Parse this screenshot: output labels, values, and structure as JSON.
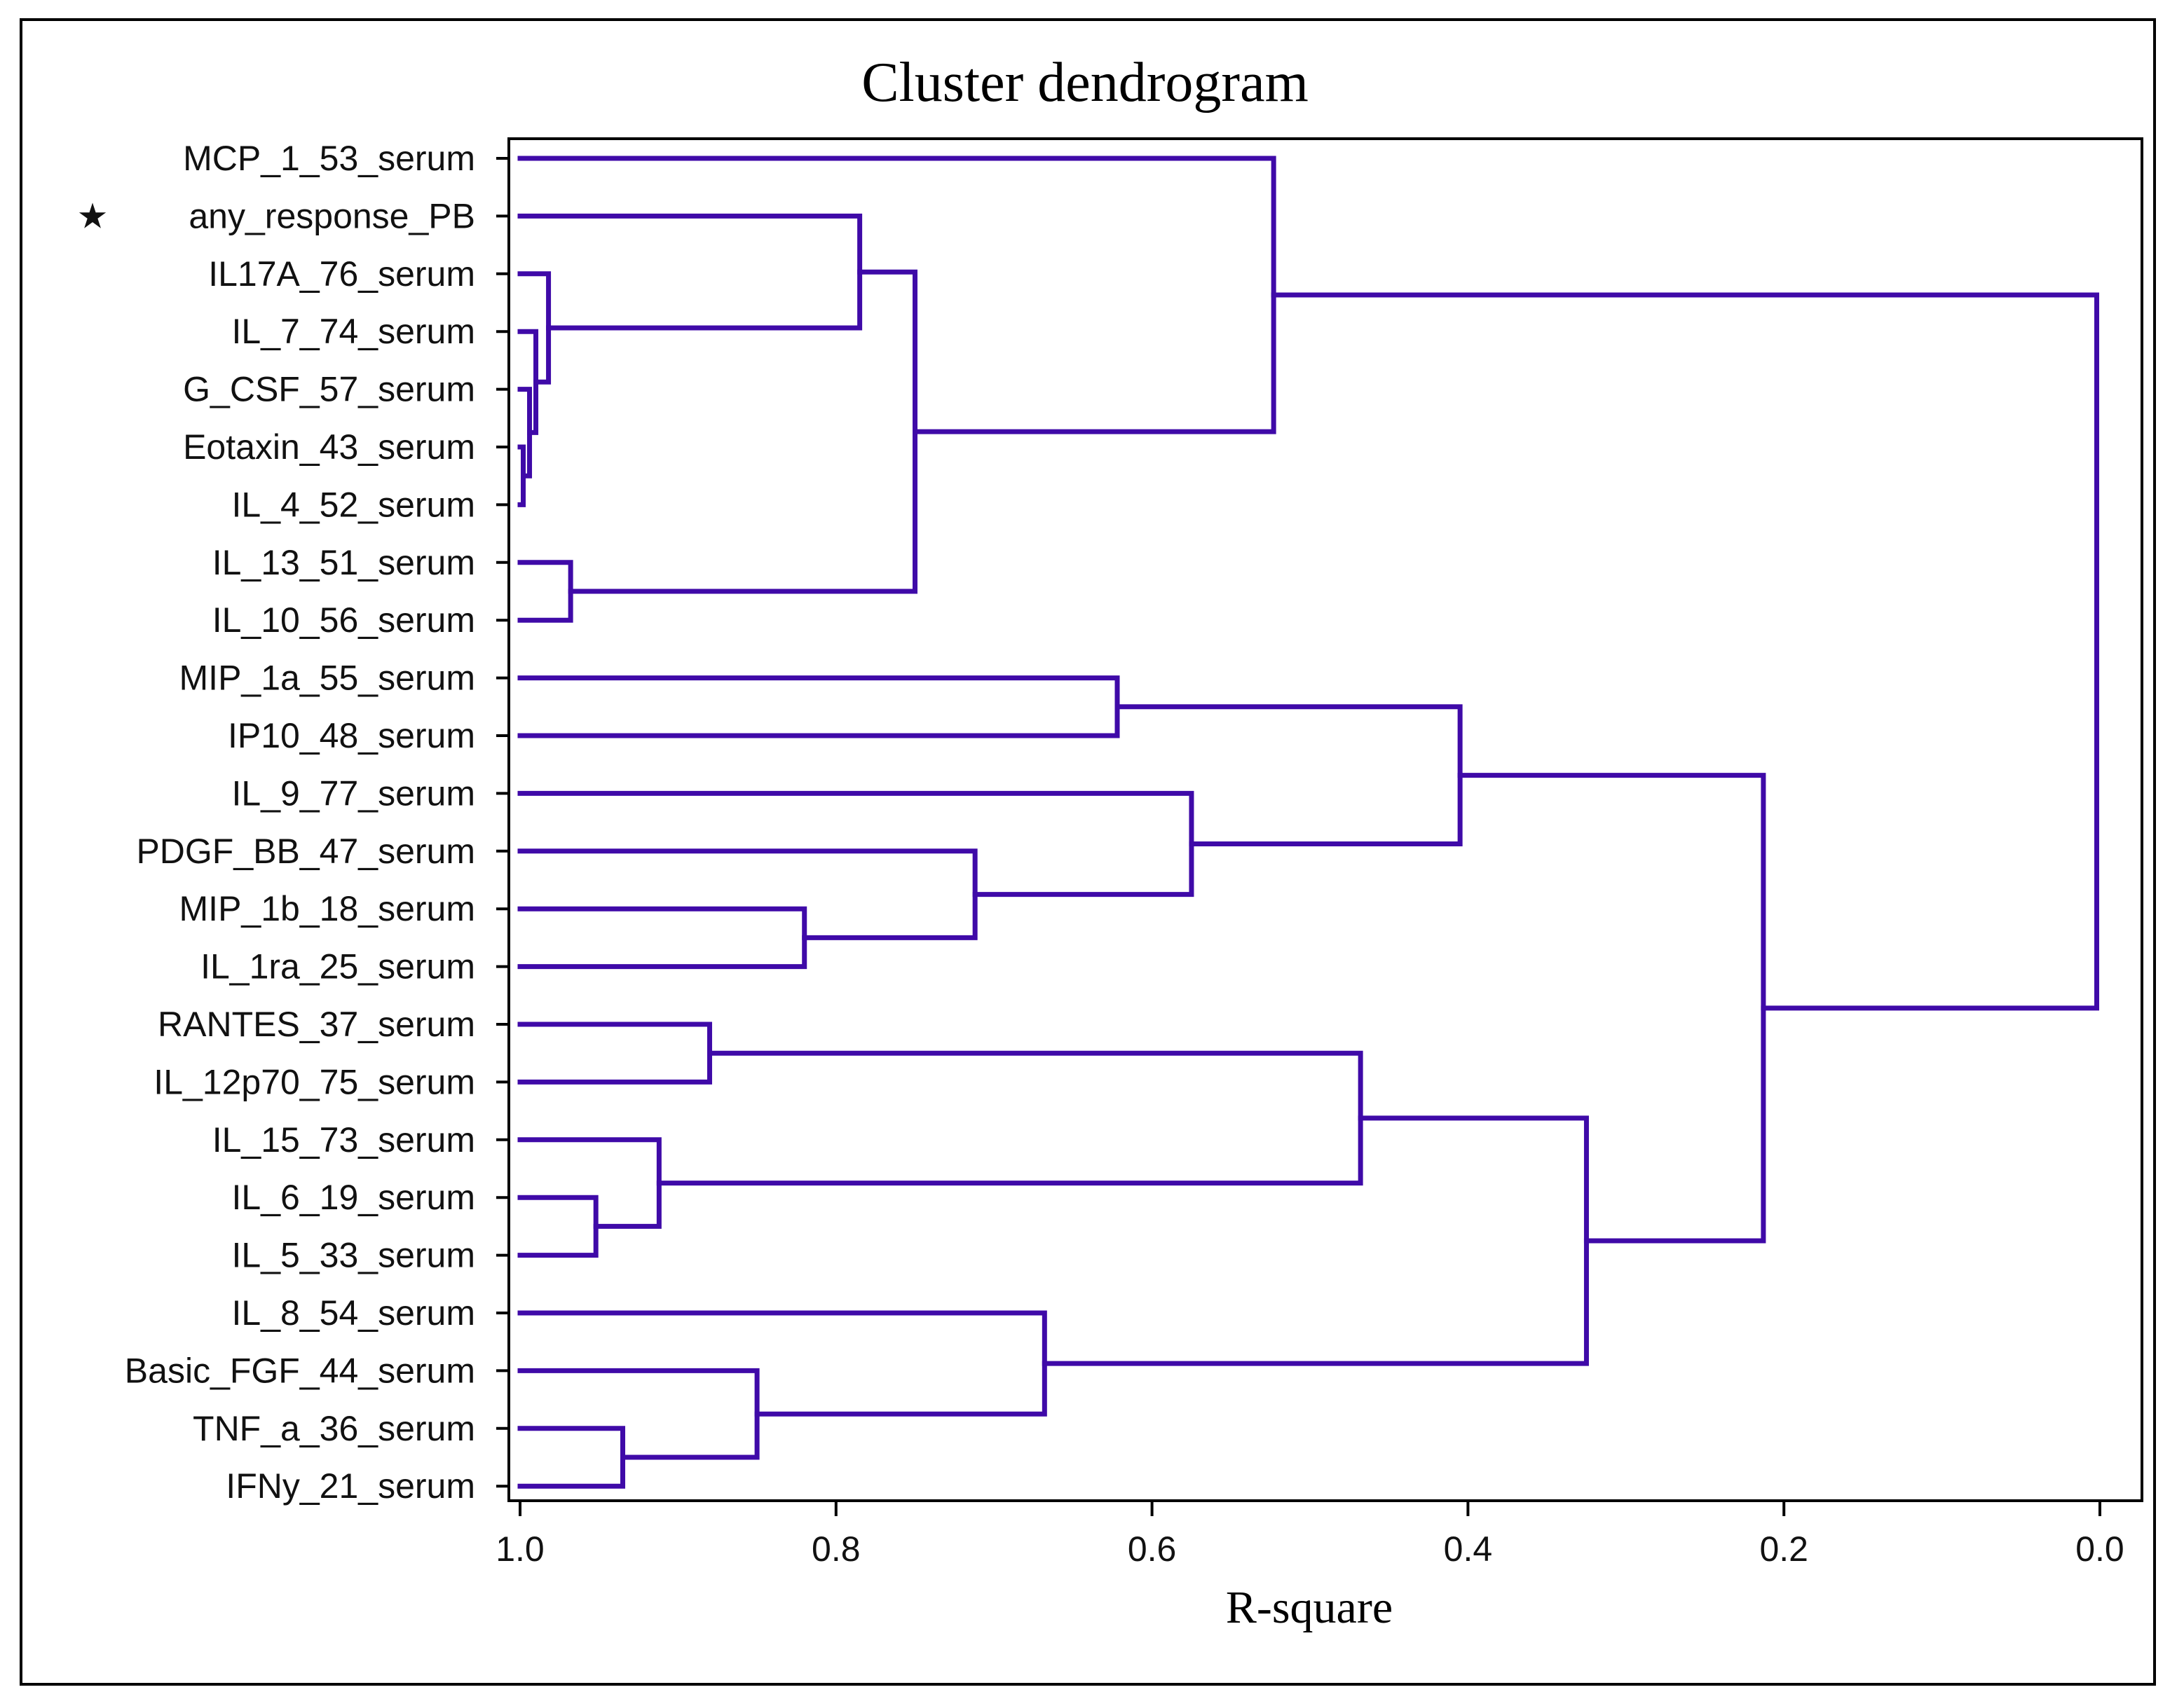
{
  "chart_data": {
    "type": "dendrogram",
    "title": "Cluster dendrogram",
    "xlabel": "R-square",
    "x_range": [
      1.0,
      0.0
    ],
    "x_ticks": [
      "1.0",
      "0.8",
      "0.6",
      "0.4",
      "0.2",
      "0.0"
    ],
    "x_tick_values": [
      1.0,
      0.8,
      0.6,
      0.4,
      0.2,
      0.0
    ],
    "line_color": "#3f0aa8",
    "marked_leaf_symbol": "★",
    "leaves": [
      {
        "label": "MCP_1_53_serum"
      },
      {
        "label": "any_response_PB",
        "marked": true
      },
      {
        "label": "IL17A_76_serum"
      },
      {
        "label": "IL_7_74_serum"
      },
      {
        "label": "G_CSF_57_serum"
      },
      {
        "label": "Eotaxin_43_serum"
      },
      {
        "label": "IL_4_52_serum"
      },
      {
        "label": "IL_13_51_serum"
      },
      {
        "label": "IL_10_56_serum"
      },
      {
        "label": "MIP_1a_55_serum"
      },
      {
        "label": "IP10_48_serum"
      },
      {
        "label": "IL_9_77_serum"
      },
      {
        "label": "PDGF_BB_47_serum"
      },
      {
        "label": "MIP_1b_18_serum"
      },
      {
        "label": "IL_1ra_25_serum"
      },
      {
        "label": "RANTES_37_serum"
      },
      {
        "label": "IL_12p70_75_serum"
      },
      {
        "label": "IL_15_73_serum"
      },
      {
        "label": "IL_6_19_serum"
      },
      {
        "label": "IL_5_33_serum"
      },
      {
        "label": "IL_8_54_serum"
      },
      {
        "label": "Basic_FGF_44_serum"
      },
      {
        "label": "TNF_a_36_serum"
      },
      {
        "label": "IFNy_21_serum"
      }
    ],
    "merges": [
      {
        "id": "m1",
        "children": [
          "L5",
          "L6"
        ],
        "rsq": 0.998
      },
      {
        "id": "m2",
        "children": [
          "L4",
          "m1"
        ],
        "rsq": 0.994
      },
      {
        "id": "m3",
        "children": [
          "L3",
          "m2"
        ],
        "rsq": 0.99
      },
      {
        "id": "m4",
        "children": [
          "L2",
          "m3"
        ],
        "rsq": 0.982
      },
      {
        "id": "m5",
        "children": [
          "L7",
          "L8"
        ],
        "rsq": 0.968
      },
      {
        "id": "m6",
        "children": [
          "L1",
          "m4"
        ],
        "rsq": 0.785
      },
      {
        "id": "m7",
        "children": [
          "m6",
          "m5"
        ],
        "rsq": 0.75
      },
      {
        "id": "m8",
        "children": [
          "L0",
          "m7"
        ],
        "rsq": 0.523
      },
      {
        "id": "m9",
        "children": [
          "L9",
          "L10"
        ],
        "rsq": 0.622
      },
      {
        "id": "m10",
        "children": [
          "L13",
          "L14"
        ],
        "rsq": 0.82
      },
      {
        "id": "m11",
        "children": [
          "L12",
          "m10"
        ],
        "rsq": 0.712
      },
      {
        "id": "m12",
        "children": [
          "L11",
          "m11"
        ],
        "rsq": 0.575
      },
      {
        "id": "m13",
        "children": [
          "m9",
          "m12"
        ],
        "rsq": 0.405
      },
      {
        "id": "m14",
        "children": [
          "L15",
          "L16"
        ],
        "rsq": 0.88
      },
      {
        "id": "m15",
        "children": [
          "L18",
          "L19"
        ],
        "rsq": 0.952
      },
      {
        "id": "m16",
        "children": [
          "L17",
          "m15"
        ],
        "rsq": 0.912
      },
      {
        "id": "m17",
        "children": [
          "m14",
          "m16"
        ],
        "rsq": 0.468
      },
      {
        "id": "m18",
        "children": [
          "L22",
          "L23"
        ],
        "rsq": 0.935
      },
      {
        "id": "m19",
        "children": [
          "L21",
          "m18"
        ],
        "rsq": 0.85
      },
      {
        "id": "m20",
        "children": [
          "L20",
          "m19"
        ],
        "rsq": 0.668
      },
      {
        "id": "m21",
        "children": [
          "m17",
          "m20"
        ],
        "rsq": 0.325
      },
      {
        "id": "m22",
        "children": [
          "m13",
          "m21"
        ],
        "rsq": 0.213
      },
      {
        "id": "m23",
        "children": [
          "m8",
          "m22"
        ],
        "rsq": 0.002
      }
    ]
  }
}
